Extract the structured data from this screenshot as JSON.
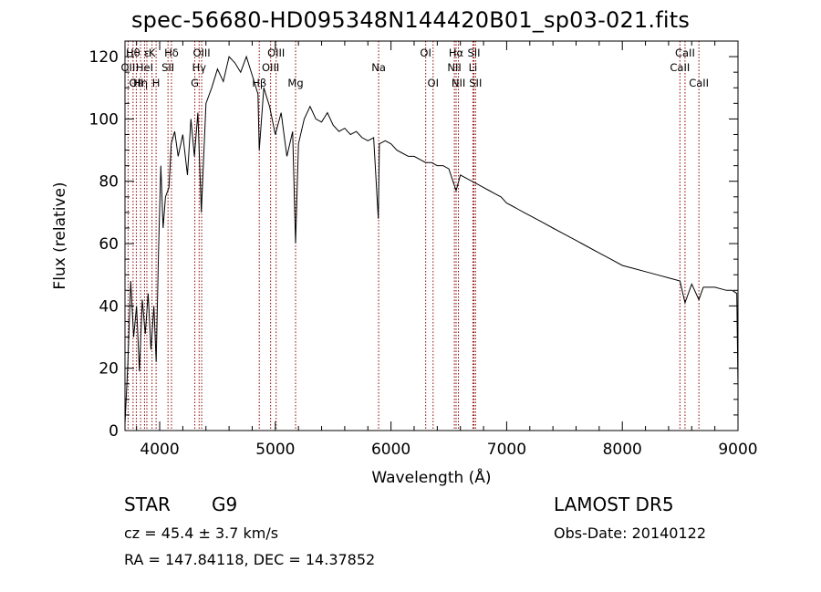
{
  "figure": {
    "title": "spec-56680-HD095348N144420B01_sp03-021.fits",
    "object_type": "STAR",
    "subclass": "G9",
    "survey": "LAMOST  DR5",
    "cz": "cz = 45.4 ± 3.7 km/s",
    "obs_date": "Obs-Date: 20140122",
    "ra_dec": "RA = 147.84118, DEC =  14.37852"
  },
  "chart_data": {
    "type": "line",
    "title": "spec-56680-HD095348N144420B01_sp03-021.fits",
    "xlabel": "Wavelength (Å)",
    "ylabel": "Flux (relative)",
    "xlim": [
      3700,
      9000
    ],
    "ylim": [
      0,
      125
    ],
    "x_ticks": [
      4000,
      5000,
      6000,
      7000,
      8000,
      9000
    ],
    "y_ticks": [
      0,
      20,
      40,
      60,
      80,
      100,
      120
    ],
    "grid": false,
    "line_color": "#000000",
    "marker_color": "#8b0000",
    "spectrum": [
      [
        3700,
        2
      ],
      [
        3725,
        22
      ],
      [
        3750,
        48
      ],
      [
        3775,
        30
      ],
      [
        3800,
        40
      ],
      [
        3825,
        19
      ],
      [
        3850,
        42
      ],
      [
        3875,
        31
      ],
      [
        3900,
        44
      ],
      [
        3925,
        26
      ],
      [
        3950,
        40
      ],
      [
        3970,
        22
      ],
      [
        3990,
        58
      ],
      [
        4010,
        85
      ],
      [
        4030,
        65
      ],
      [
        4050,
        75
      ],
      [
        4080,
        78
      ],
      [
        4100,
        92
      ],
      [
        4130,
        96
      ],
      [
        4160,
        88
      ],
      [
        4200,
        95
      ],
      [
        4240,
        82
      ],
      [
        4270,
        100
      ],
      [
        4300,
        88
      ],
      [
        4330,
        102
      ],
      [
        4360,
        70
      ],
      [
        4400,
        105
      ],
      [
        4450,
        110
      ],
      [
        4500,
        116
      ],
      [
        4550,
        112
      ],
      [
        4600,
        120
      ],
      [
        4650,
        118
      ],
      [
        4700,
        115
      ],
      [
        4750,
        120
      ],
      [
        4800,
        114
      ],
      [
        4850,
        108
      ],
      [
        4861,
        90
      ],
      [
        4900,
        110
      ],
      [
        4950,
        104
      ],
      [
        5000,
        95
      ],
      [
        5050,
        102
      ],
      [
        5100,
        88
      ],
      [
        5150,
        96
      ],
      [
        5175,
        60
      ],
      [
        5200,
        92
      ],
      [
        5250,
        100
      ],
      [
        5300,
        104
      ],
      [
        5350,
        100
      ],
      [
        5400,
        99
      ],
      [
        5450,
        102
      ],
      [
        5500,
        98
      ],
      [
        5550,
        96
      ],
      [
        5600,
        97
      ],
      [
        5650,
        95
      ],
      [
        5700,
        96
      ],
      [
        5750,
        94
      ],
      [
        5800,
        93
      ],
      [
        5850,
        94
      ],
      [
        5890,
        68
      ],
      [
        5900,
        92
      ],
      [
        5950,
        93
      ],
      [
        6000,
        92
      ],
      [
        6050,
        90
      ],
      [
        6100,
        89
      ],
      [
        6150,
        88
      ],
      [
        6200,
        88
      ],
      [
        6250,
        87
      ],
      [
        6300,
        86
      ],
      [
        6350,
        86
      ],
      [
        6400,
        85
      ],
      [
        6450,
        85
      ],
      [
        6500,
        84
      ],
      [
        6563,
        77
      ],
      [
        6600,
        82
      ],
      [
        6650,
        81
      ],
      [
        6700,
        80
      ],
      [
        6750,
        79
      ],
      [
        6800,
        78
      ],
      [
        6850,
        77
      ],
      [
        6900,
        76
      ],
      [
        6950,
        75
      ],
      [
        7000,
        73
      ],
      [
        7050,
        72
      ],
      [
        7100,
        71
      ],
      [
        7150,
        70
      ],
      [
        7200,
        69
      ],
      [
        7300,
        67
      ],
      [
        7400,
        65
      ],
      [
        7500,
        63
      ],
      [
        7600,
        61
      ],
      [
        7700,
        59
      ],
      [
        7800,
        57
      ],
      [
        7900,
        55
      ],
      [
        8000,
        53
      ],
      [
        8100,
        52
      ],
      [
        8200,
        51
      ],
      [
        8300,
        50
      ],
      [
        8400,
        49
      ],
      [
        8498,
        48
      ],
      [
        8542,
        41
      ],
      [
        8600,
        47
      ],
      [
        8662,
        42
      ],
      [
        8700,
        46
      ],
      [
        8800,
        46
      ],
      [
        8900,
        45
      ],
      [
        8950,
        45
      ],
      [
        8990,
        44
      ],
      [
        9000,
        14
      ]
    ],
    "line_markers": [
      {
        "wavelength": 3727,
        "label": "OII",
        "row": 2
      },
      {
        "wavelength": 3770,
        "label": "Hθ",
        "row": 1
      },
      {
        "wavelength": 3798,
        "label": "OII",
        "row": 3
      },
      {
        "wavelength": 3835,
        "label": "Hη",
        "row": 3
      },
      {
        "wavelength": 3869,
        "label": "HeI",
        "row": 2
      },
      {
        "wavelength": 3889,
        "label": "ε",
        "row": 1
      },
      {
        "wavelength": 3934,
        "label": "K",
        "row": 1
      },
      {
        "wavelength": 3969,
        "label": "H",
        "row": 3
      },
      {
        "wavelength": 4072,
        "label": "SII",
        "row": 2
      },
      {
        "wavelength": 4102,
        "label": "Hδ",
        "row": 1
      },
      {
        "wavelength": 4304,
        "label": "G",
        "row": 3
      },
      {
        "wavelength": 4341,
        "label": "Hγ",
        "row": 2
      },
      {
        "wavelength": 4363,
        "label": "OIII",
        "row": 1
      },
      {
        "wavelength": 4861,
        "label": "Hβ",
        "row": 3
      },
      {
        "wavelength": 4959,
        "label": "OIII",
        "row": 2
      },
      {
        "wavelength": 5007,
        "label": "OIII",
        "row": 1
      },
      {
        "wavelength": 5175,
        "label": "Mg",
        "row": 3
      },
      {
        "wavelength": 5893,
        "label": "Na",
        "row": 2
      },
      {
        "wavelength": 6300,
        "label": "OI",
        "row": 1
      },
      {
        "wavelength": 6364,
        "label": "OI",
        "row": 3
      },
      {
        "wavelength": 6548,
        "label": "NII",
        "row": 2
      },
      {
        "wavelength": 6563,
        "label": "Hα",
        "row": 1
      },
      {
        "wavelength": 6583,
        "label": "NII",
        "row": 3
      },
      {
        "wavelength": 6708,
        "label": "Li",
        "row": 2
      },
      {
        "wavelength": 6717,
        "label": "SII",
        "row": 1
      },
      {
        "wavelength": 6731,
        "label": "SII",
        "row": 3
      },
      {
        "wavelength": 8498,
        "label": "CaII",
        "row": 2
      },
      {
        "wavelength": 8542,
        "label": "CaII",
        "row": 1
      },
      {
        "wavelength": 8662,
        "label": "CaII",
        "row": 3
      }
    ]
  }
}
